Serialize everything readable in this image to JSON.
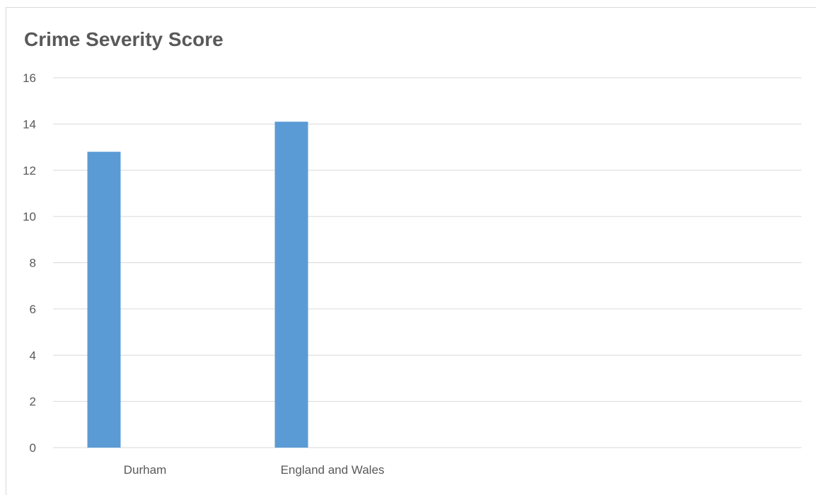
{
  "chart_data": {
    "type": "bar",
    "title": "Crime Severity Score",
    "xlabel": "",
    "ylabel": "",
    "categories": [
      "Durham",
      "England and Wales"
    ],
    "values": [
      12.8,
      14.1
    ],
    "yticks": [
      0,
      2,
      4,
      6,
      8,
      10,
      12,
      14,
      16
    ],
    "ylim": [
      0,
      16
    ],
    "grid": true,
    "legend": "none",
    "bar_color": "#5b9bd5",
    "gridline_color": "#d9d9d9"
  }
}
